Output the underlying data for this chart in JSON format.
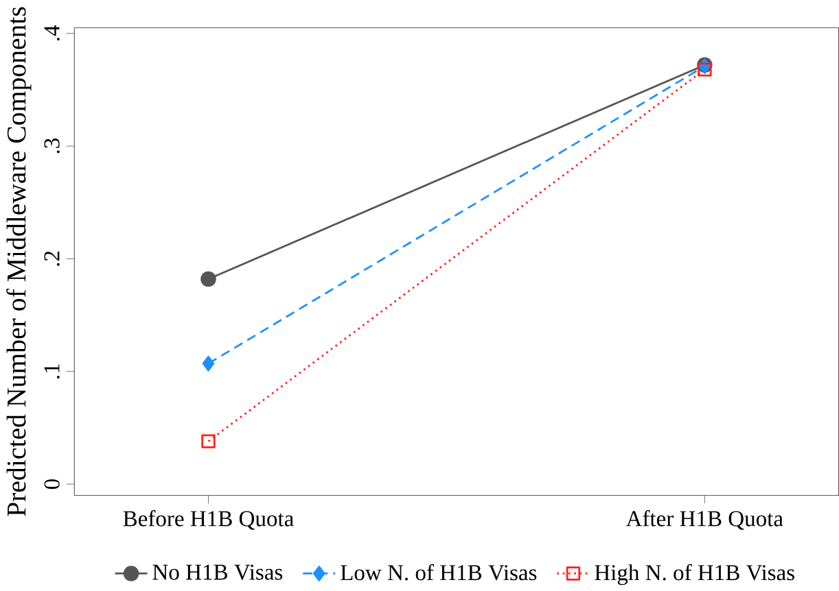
{
  "chart_data": {
    "type": "line",
    "ylabel": "Predicted Number of Middleware Components",
    "categories": [
      "Before H1B Quota",
      "After H1B Quota"
    ],
    "series": [
      {
        "name": "No H1B Visas",
        "color": "#555555",
        "values": [
          0.182,
          0.372
        ],
        "marker": "circle",
        "line_style": "solid"
      },
      {
        "name": "Low N. of H1B Visas",
        "color": "#1e90ff",
        "values": [
          0.107,
          0.371
        ],
        "marker": "diamond",
        "line_style": "dashed"
      },
      {
        "name": "High N. of H1B Visas",
        "color": "#ff2020",
        "values": [
          0.038,
          0.368
        ],
        "marker": "square",
        "line_style": "dotted"
      }
    ],
    "ylim": [
      -0.01,
      0.405
    ],
    "yticks": [
      0,
      {
        "value": 0.1,
        "label": ".1"
      },
      {
        "value": 0.2,
        "label": ".2"
      },
      {
        "value": 0.3,
        "label": ".3"
      },
      {
        "value": 0.4,
        "label": ".4"
      }
    ],
    "grid": false,
    "legend": "bottom"
  }
}
